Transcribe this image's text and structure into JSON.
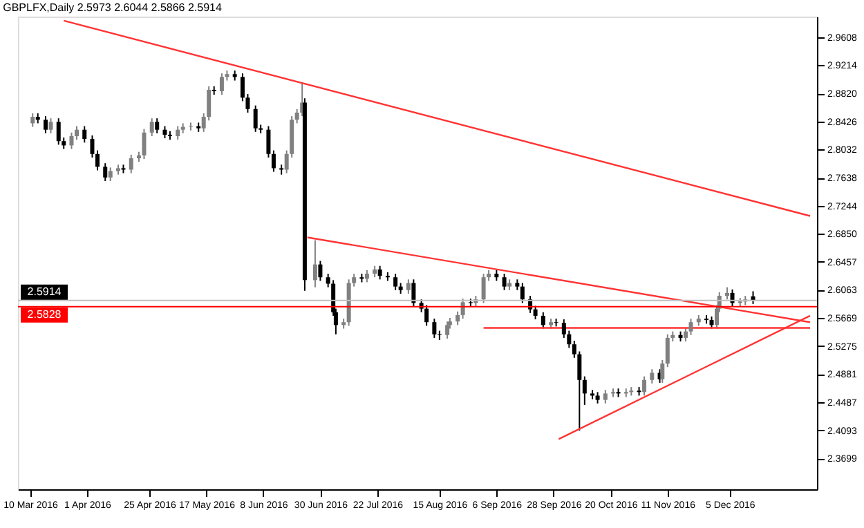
{
  "chart_data": {
    "type": "candlestick",
    "title": "GBPLFX,Daily  2.5973 2.6044 2.5866 2.5914",
    "colors": [
      "#808080",
      "#000000",
      "#000000",
      "#808080",
      "#000000",
      "#000000",
      "#808080",
      "#808080",
      "#000000",
      "#000000",
      "#000000",
      "#000000",
      "#808080",
      "#808080",
      "#000000",
      "#808080",
      "#808080",
      "#808080",
      "#808080",
      "#000000",
      "#000000",
      "#000000",
      "#808080",
      "#808080",
      "#808080",
      "#000000",
      "#808080",
      "#808080",
      "#000000",
      "#808080",
      "#808080",
      "#000000",
      "#000000",
      "#000000",
      "#000000",
      "#000000",
      "#000000",
      "#000000",
      "#000000",
      "#808080",
      "#808080",
      "#808080",
      "#808080",
      "#000000",
      "#808080",
      "#000000",
      "#000000",
      "#000000",
      "#000000",
      "#808080",
      "#808080",
      "#808080",
      "#000000",
      "#808080",
      "#808080",
      "#000000",
      "#000000",
      "#000000",
      "#000000",
      "#808080",
      "#000000",
      "#000000",
      "#000000",
      "#000000",
      "#000000",
      "#808080",
      "#808080",
      "#808080",
      "#808080",
      "#000000",
      "#808080",
      "#808080",
      "#808080",
      "#000000",
      "#000000",
      "#808080",
      "#000000",
      "#000000",
      "#000000",
      "#000000",
      "#000000",
      "#808080",
      "#000000",
      "#000000",
      "#000000",
      "#000000",
      "#000000",
      "#000000",
      "#000000",
      "#000000",
      "#808080",
      "#808080",
      "#000000",
      "#808080",
      "#808080",
      "#000000",
      "#808080",
      "#808080",
      "#000000",
      "#808080",
      "#808080",
      "#808080",
      "#000000",
      "#808080",
      "#808080",
      "#808080",
      "#000000",
      "#000000",
      "#808080",
      "#808080",
      "#808080",
      "#000000",
      "#808080",
      "#808080",
      "#000000"
    ],
    "grid": false,
    "line_style": "solid",
    "x": [
      "2016-03-11",
      "2016-03-13",
      "2016-03-16",
      "2016-03-18",
      "2016-03-21",
      "2016-03-23",
      "2016-03-26",
      "2016-03-28",
      "2016-03-31",
      "2016-04-03",
      "2016-04-05",
      "2016-04-08",
      "2016-04-10",
      "2016-04-13",
      "2016-04-15",
      "2016-04-18",
      "2016-04-21",
      "2016-04-23",
      "2016-04-26",
      "2016-04-28",
      "2016-05-01",
      "2016-05-03",
      "2016-05-06",
      "2016-05-08",
      "2016-05-11",
      "2016-05-14",
      "2016-05-16",
      "2016-05-18",
      "2016-05-20",
      "2016-05-23",
      "2016-05-25",
      "2016-05-28",
      "2016-05-31",
      "2016-06-02",
      "2016-06-05",
      "2016-06-07",
      "2016-06-10",
      "2016-06-12",
      "2016-06-15",
      "2016-06-17",
      "2016-06-19",
      "2016-06-21",
      "2016-06-23",
      "2016-06-24",
      "2016-06-28",
      "2016-06-30",
      "2016-07-03",
      "2016-07-05",
      "2016-07-06",
      "2016-07-09",
      "2016-07-11",
      "2016-07-13",
      "2016-07-16",
      "2016-07-18",
      "2016-07-21",
      "2016-07-23",
      "2016-07-26",
      "2016-07-29",
      "2016-07-31",
      "2016-08-03",
      "2016-08-05",
      "2016-08-08",
      "2016-08-10",
      "2016-08-13",
      "2016-08-15",
      "2016-08-18",
      "2016-08-19",
      "2016-08-22",
      "2016-08-24",
      "2016-08-27",
      "2016-08-29",
      "2016-09-01",
      "2016-09-03",
      "2016-09-06",
      "2016-09-09",
      "2016-09-11",
      "2016-09-14",
      "2016-09-16",
      "2016-09-19",
      "2016-09-21",
      "2016-09-24",
      "2016-09-27",
      "2016-09-29",
      "2016-10-02",
      "2016-10-04",
      "2016-10-06",
      "2016-10-08",
      "2016-10-10",
      "2016-10-13",
      "2016-10-15",
      "2016-10-18",
      "2016-10-21",
      "2016-10-23",
      "2016-10-26",
      "2016-10-28",
      "2016-10-31",
      "2016-11-02",
      "2016-11-05",
      "2016-11-08",
      "2016-11-09",
      "2016-11-11",
      "2016-11-13",
      "2016-11-16",
      "2016-11-18",
      "2016-11-20",
      "2016-11-23",
      "2016-11-26",
      "2016-11-28",
      "2016-11-30",
      "2016-12-01",
      "2016-12-04",
      "2016-12-06",
      "2016-12-09",
      "2016-12-11",
      "2016-12-14"
    ],
    "ohlc": [
      [
        2.84,
        2.854,
        2.835,
        2.849
      ],
      [
        2.849,
        2.854,
        2.84,
        2.845
      ],
      [
        2.845,
        2.85,
        2.826,
        2.831
      ],
      [
        2.831,
        2.847,
        2.826,
        2.842
      ],
      [
        2.842,
        2.847,
        2.81,
        2.815
      ],
      [
        2.815,
        2.82,
        2.804,
        2.809
      ],
      [
        2.809,
        2.827,
        2.804,
        2.822
      ],
      [
        2.822,
        2.836,
        2.817,
        2.831
      ],
      [
        2.831,
        2.836,
        2.813,
        2.818
      ],
      [
        2.818,
        2.823,
        2.792,
        2.797
      ],
      [
        2.797,
        2.802,
        2.774,
        2.779
      ],
      [
        2.779,
        2.784,
        2.759,
        2.764
      ],
      [
        2.764,
        2.778,
        2.759,
        2.773
      ],
      [
        2.773,
        2.782,
        2.768,
        2.777
      ],
      [
        2.777,
        2.782,
        2.77,
        2.775
      ],
      [
        2.775,
        2.796,
        2.77,
        2.791
      ],
      [
        2.791,
        2.8,
        2.786,
        2.795
      ],
      [
        2.795,
        2.832,
        2.79,
        2.827
      ],
      [
        2.827,
        2.847,
        2.822,
        2.842
      ],
      [
        2.842,
        2.847,
        2.826,
        2.831
      ],
      [
        2.831,
        2.836,
        2.819,
        2.824
      ],
      [
        2.824,
        2.829,
        2.817,
        2.822
      ],
      [
        2.822,
        2.836,
        2.817,
        2.831
      ],
      [
        2.831,
        2.84,
        2.826,
        2.835
      ],
      [
        2.835,
        2.841,
        2.83,
        2.836
      ],
      [
        2.836,
        2.841,
        2.828,
        2.833
      ],
      [
        2.833,
        2.854,
        2.828,
        2.849
      ],
      [
        2.849,
        2.892,
        2.844,
        2.887
      ],
      [
        2.887,
        2.892,
        2.88,
        2.885
      ],
      [
        2.885,
        2.91,
        2.88,
        2.905
      ],
      [
        2.905,
        2.914,
        2.9,
        2.909
      ],
      [
        2.909,
        2.914,
        2.9,
        2.905
      ],
      [
        2.905,
        2.91,
        2.871,
        2.876
      ],
      [
        2.876,
        2.881,
        2.855,
        2.86
      ],
      [
        2.86,
        2.865,
        2.828,
        2.833
      ],
      [
        2.833,
        2.838,
        2.826,
        2.831
      ],
      [
        2.831,
        2.836,
        2.792,
        2.797
      ],
      [
        2.797,
        2.802,
        2.772,
        2.777
      ],
      [
        2.777,
        2.782,
        2.768,
        2.775
      ],
      [
        2.775,
        2.802,
        2.77,
        2.797
      ],
      [
        2.797,
        2.85,
        2.792,
        2.845
      ],
      [
        2.845,
        2.86,
        2.84,
        2.855
      ],
      [
        2.855,
        2.896,
        2.85,
        2.869
      ],
      [
        2.869,
        2.875,
        2.605,
        2.62
      ],
      [
        2.62,
        2.676,
        2.61,
        2.642
      ],
      [
        2.642,
        2.647,
        2.619,
        2.624
      ],
      [
        2.624,
        2.629,
        2.61,
        2.615
      ],
      [
        2.615,
        2.62,
        2.57,
        2.575
      ],
      [
        2.575,
        2.58,
        2.544,
        2.557
      ],
      [
        2.557,
        2.566,
        2.552,
        2.561
      ],
      [
        2.561,
        2.621,
        2.556,
        2.616
      ],
      [
        2.616,
        2.629,
        2.611,
        2.624
      ],
      [
        2.624,
        2.629,
        2.617,
        2.622
      ],
      [
        2.622,
        2.634,
        2.617,
        2.629
      ],
      [
        2.629,
        2.64,
        2.624,
        2.635
      ],
      [
        2.635,
        2.64,
        2.621,
        2.626
      ],
      [
        2.626,
        2.631,
        2.619,
        2.624
      ],
      [
        2.624,
        2.629,
        2.606,
        2.611
      ],
      [
        2.611,
        2.616,
        2.601,
        2.606
      ],
      [
        2.606,
        2.621,
        2.601,
        2.616
      ],
      [
        2.616,
        2.621,
        2.583,
        2.588
      ],
      [
        2.588,
        2.593,
        2.575,
        2.58
      ],
      [
        2.58,
        2.585,
        2.556,
        2.561
      ],
      [
        2.561,
        2.566,
        2.539,
        2.544
      ],
      [
        2.544,
        2.549,
        2.536,
        2.543
      ],
      [
        2.543,
        2.562,
        2.538,
        2.557
      ],
      [
        2.557,
        2.567,
        2.552,
        2.562
      ],
      [
        2.562,
        2.576,
        2.557,
        2.571
      ],
      [
        2.571,
        2.594,
        2.566,
        2.589
      ],
      [
        2.589,
        2.594,
        2.583,
        2.588
      ],
      [
        2.588,
        2.598,
        2.583,
        2.593
      ],
      [
        2.593,
        2.629,
        2.588,
        2.624
      ],
      [
        2.624,
        2.634,
        2.619,
        2.629
      ],
      [
        2.629,
        2.634,
        2.619,
        2.624
      ],
      [
        2.624,
        2.629,
        2.606,
        2.611
      ],
      [
        2.611,
        2.621,
        2.606,
        2.616
      ],
      [
        2.616,
        2.621,
        2.606,
        2.611
      ],
      [
        2.611,
        2.616,
        2.588,
        2.593
      ],
      [
        2.593,
        2.598,
        2.574,
        2.579
      ],
      [
        2.579,
        2.584,
        2.565,
        2.57
      ],
      [
        2.57,
        2.575,
        2.552,
        2.557
      ],
      [
        2.557,
        2.566,
        2.552,
        2.561
      ],
      [
        2.561,
        2.566,
        2.555,
        2.56
      ],
      [
        2.56,
        2.565,
        2.539,
        2.544
      ],
      [
        2.544,
        2.549,
        2.525,
        2.53
      ],
      [
        2.53,
        2.535,
        2.511,
        2.516
      ],
      [
        2.516,
        2.52,
        2.409,
        2.48
      ],
      [
        2.48,
        2.485,
        2.445,
        2.461
      ],
      [
        2.461,
        2.466,
        2.453,
        2.458
      ],
      [
        2.458,
        2.463,
        2.447,
        2.452
      ],
      [
        2.452,
        2.466,
        2.447,
        2.461
      ],
      [
        2.461,
        2.468,
        2.456,
        2.463
      ],
      [
        2.463,
        2.468,
        2.456,
        2.461
      ],
      [
        2.461,
        2.468,
        2.456,
        2.463
      ],
      [
        2.463,
        2.47,
        2.458,
        2.465
      ],
      [
        2.465,
        2.47,
        2.458,
        2.463
      ],
      [
        2.463,
        2.485,
        2.458,
        2.48
      ],
      [
        2.48,
        2.495,
        2.475,
        2.49
      ],
      [
        2.49,
        2.495,
        2.476,
        2.481
      ],
      [
        2.481,
        2.508,
        2.476,
        2.503
      ],
      [
        2.503,
        2.544,
        2.498,
        2.539
      ],
      [
        2.539,
        2.548,
        2.534,
        2.543
      ],
      [
        2.543,
        2.548,
        2.534,
        2.539
      ],
      [
        2.539,
        2.553,
        2.534,
        2.548
      ],
      [
        2.548,
        2.566,
        2.543,
        2.561
      ],
      [
        2.561,
        2.571,
        2.556,
        2.566
      ],
      [
        2.566,
        2.571,
        2.559,
        2.564
      ],
      [
        2.564,
        2.569,
        2.552,
        2.557
      ],
      [
        2.557,
        2.585,
        2.552,
        2.58
      ],
      [
        2.58,
        2.603,
        2.575,
        2.598
      ],
      [
        2.598,
        2.61,
        2.593,
        2.602
      ],
      [
        2.602,
        2.607,
        2.583,
        2.588
      ],
      [
        2.588,
        2.595,
        2.583,
        2.59
      ],
      [
        2.59,
        2.598,
        2.585,
        2.593
      ],
      [
        2.5973,
        2.6044,
        2.5866,
        2.5914
      ]
    ],
    "series": [
      {
        "type": "line",
        "color": "#ff3333",
        "x": [
          "2016-03-23",
          "2017-01-05"
        ],
        "values": [
          2.984,
          2.71
        ]
      },
      {
        "type": "line",
        "color": "#ff3333",
        "x": [
          "2016-06-25",
          "2017-01-05"
        ],
        "values": [
          2.68,
          2.561
        ]
      },
      {
        "type": "line",
        "color": "#ff3333",
        "x": [
          "2016-09-30",
          "2017-01-05"
        ],
        "values": [
          2.397,
          2.57
        ]
      },
      {
        "type": "line",
        "color": "#ff3333",
        "x": [
          "2016-09-01",
          "2017-01-05"
        ],
        "values": [
          2.553,
          2.553
        ]
      }
    ],
    "ref_lines": [
      {
        "axis": "y",
        "value": 2.5914,
        "label": "2.5914",
        "color": "#c0c0c0"
      },
      {
        "axis": "y",
        "value": 2.5828,
        "label": "2.5828",
        "color": "#ff0000"
      }
    ],
    "xlim": [
      "2016-03-08",
      "2017-01-05"
    ],
    "xticks": [
      {
        "value": "2016-03-10",
        "label": "10 Mar 2016"
      },
      {
        "value": "2016-04-01",
        "label": "1 Apr 2016"
      },
      {
        "value": "2016-04-25",
        "label": "25 Apr 2016"
      },
      {
        "value": "2016-05-17",
        "label": "17 May 2016"
      },
      {
        "value": "2016-06-08",
        "label": "8 Jun 2016"
      },
      {
        "value": "2016-06-30",
        "label": "30 Jun 2016"
      },
      {
        "value": "2016-07-22",
        "label": "22 Jul 2016"
      },
      {
        "value": "2016-08-15",
        "label": "15 Aug 2016"
      },
      {
        "value": "2016-09-06",
        "label": "6 Sep 2016"
      },
      {
        "value": "2016-09-28",
        "label": "28 Sep 2016"
      },
      {
        "value": "2016-10-20",
        "label": "20 Oct 2016"
      },
      {
        "value": "2016-11-11",
        "label": "11 Nov 2016"
      },
      {
        "value": "2016-12-05",
        "label": "5 Dec 2016"
      }
    ],
    "ylim": [
      2.3266,
      2.9897
    ],
    "yticks": [
      2.9608,
      2.9214,
      {
        "value": 2.882,
        "label": "2.8820"
      },
      2.8426,
      2.8032,
      2.7638,
      2.7244,
      {
        "value": 2.685,
        "label": "2.6850"
      },
      2.6457,
      2.6063,
      2.5669,
      2.5275,
      2.4881,
      2.4487,
      2.4093,
      2.3699
    ]
  }
}
